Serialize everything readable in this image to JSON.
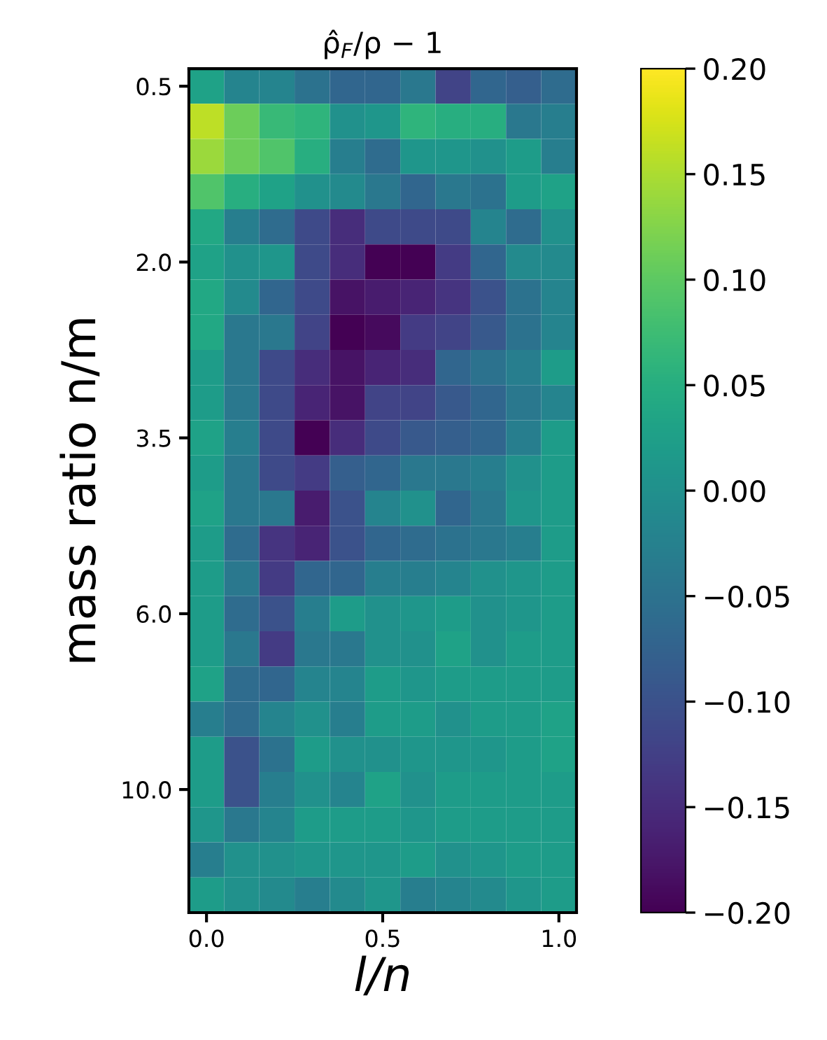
{
  "chart_data": {
    "type": "heatmap",
    "title": "ρ̂$_{F}$/ρ − 1",
    "xlabel": "l/n",
    "ylabel": "mass ratio n/m",
    "categories": [
      "0.0",
      null,
      null,
      null,
      null,
      "0.5",
      null,
      null,
      null,
      null,
      "1.0"
    ],
    "y_categories": [
      "0.5",
      null,
      null,
      null,
      null,
      "2.0",
      null,
      null,
      null,
      null,
      "3.5",
      null,
      null,
      null,
      null,
      "6.0",
      null,
      null,
      null,
      null,
      "10.0",
      null,
      null,
      null
    ],
    "cells": [
      [
        0.03,
        -0.02,
        -0.02,
        -0.05,
        -0.07,
        -0.07,
        -0.04,
        -0.12,
        -0.07,
        -0.08,
        -0.06
      ],
      [
        0.16,
        0.11,
        0.07,
        0.06,
        0.0,
        0.01,
        0.06,
        0.05,
        0.05,
        -0.04,
        -0.03
      ],
      [
        0.14,
        0.11,
        0.09,
        0.05,
        -0.03,
        -0.06,
        0.01,
        0.01,
        0.0,
        0.02,
        -0.03
      ],
      [
        0.09,
        0.05,
        0.03,
        0.0,
        -0.01,
        -0.04,
        -0.07,
        -0.04,
        -0.05,
        0.02,
        0.03
      ],
      [
        0.04,
        -0.03,
        -0.06,
        -0.11,
        -0.15,
        -0.11,
        -0.11,
        -0.11,
        -0.02,
        -0.06,
        0.0
      ],
      [
        0.03,
        0.0,
        0.01,
        -0.11,
        -0.15,
        -0.2,
        -0.2,
        -0.13,
        -0.07,
        -0.01,
        -0.01
      ],
      [
        0.04,
        -0.01,
        -0.07,
        -0.11,
        -0.18,
        -0.17,
        -0.16,
        -0.14,
        -0.1,
        -0.05,
        -0.02
      ],
      [
        0.04,
        -0.04,
        -0.04,
        -0.12,
        -0.2,
        -0.19,
        -0.13,
        -0.12,
        -0.09,
        -0.05,
        -0.02
      ],
      [
        0.02,
        -0.04,
        -0.11,
        -0.15,
        -0.18,
        -0.16,
        -0.15,
        -0.07,
        -0.05,
        -0.03,
        0.02
      ],
      [
        0.02,
        -0.04,
        -0.11,
        -0.16,
        -0.18,
        -0.12,
        -0.12,
        -0.09,
        -0.07,
        -0.04,
        -0.02
      ],
      [
        0.03,
        -0.03,
        -0.11,
        -0.2,
        -0.15,
        -0.11,
        -0.09,
        -0.08,
        -0.07,
        -0.03,
        0.02
      ],
      [
        0.02,
        -0.04,
        -0.11,
        -0.13,
        -0.08,
        -0.07,
        -0.04,
        -0.04,
        -0.03,
        0.0,
        0.02
      ],
      [
        0.03,
        -0.04,
        -0.04,
        -0.17,
        -0.1,
        -0.02,
        0.0,
        -0.07,
        -0.04,
        0.01,
        0.02
      ],
      [
        0.02,
        -0.06,
        -0.14,
        -0.16,
        -0.1,
        -0.07,
        -0.06,
        -0.05,
        -0.04,
        -0.03,
        0.02
      ],
      [
        0.02,
        -0.04,
        -0.13,
        -0.07,
        -0.07,
        -0.03,
        -0.03,
        -0.02,
        0.0,
        0.01,
        0.02
      ],
      [
        0.02,
        -0.06,
        -0.1,
        -0.03,
        0.02,
        0.0,
        0.01,
        0.02,
        0.0,
        0.01,
        0.02
      ],
      [
        0.02,
        -0.04,
        -0.13,
        -0.04,
        -0.04,
        0.0,
        0.0,
        0.03,
        0.0,
        0.02,
        0.02
      ],
      [
        0.03,
        -0.06,
        -0.07,
        -0.02,
        -0.02,
        0.02,
        0.01,
        0.02,
        0.02,
        0.02,
        0.02
      ],
      [
        -0.03,
        -0.06,
        -0.02,
        0.0,
        -0.03,
        0.02,
        0.02,
        0.0,
        0.02,
        0.02,
        0.03
      ],
      [
        0.02,
        -0.1,
        -0.05,
        0.02,
        0.0,
        0.0,
        0.01,
        0.01,
        0.01,
        0.02,
        0.03
      ],
      [
        0.02,
        -0.1,
        -0.03,
        0.0,
        -0.02,
        0.03,
        0.0,
        0.02,
        0.02,
        0.02,
        0.02
      ],
      [
        0.01,
        -0.04,
        -0.02,
        0.02,
        0.02,
        0.02,
        0.01,
        0.02,
        0.02,
        0.02,
        0.02
      ],
      [
        -0.03,
        0.0,
        0.0,
        0.01,
        0.01,
        0.01,
        0.02,
        0.0,
        0.01,
        0.02,
        0.02
      ],
      [
        0.02,
        0.0,
        -0.01,
        -0.03,
        -0.01,
        0.01,
        -0.03,
        -0.02,
        -0.01,
        0.01,
        0.02
      ]
    ],
    "clim": [
      -0.2,
      0.2
    ],
    "cticks": [
      {
        "value": -0.2,
        "label": "−0.20"
      },
      {
        "value": -0.15,
        "label": "−0.15"
      },
      {
        "value": -0.1,
        "label": "−0.10"
      },
      {
        "value": -0.05,
        "label": "−0.05"
      },
      {
        "value": 0,
        "label": "0.00"
      },
      {
        "value": 0.05,
        "label": "0.05"
      },
      {
        "value": 0.1,
        "label": "0.10"
      },
      {
        "value": 0.15,
        "label": "0.15"
      },
      {
        "value": 0.2,
        "label": "0.20"
      }
    ]
  }
}
